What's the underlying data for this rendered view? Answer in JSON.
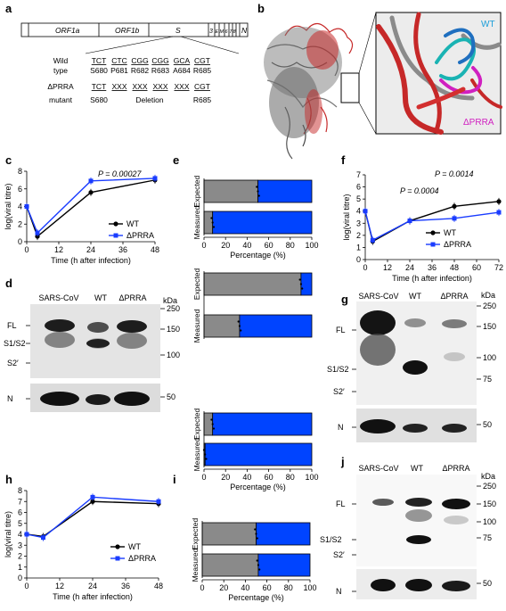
{
  "panel_labels": {
    "a": "a",
    "b": "b",
    "c": "c",
    "d": "d",
    "e": "e",
    "f": "f",
    "g": "g",
    "h": "h",
    "i": "i",
    "j": "j"
  },
  "panel_a": {
    "genes": [
      "ORF1a",
      "ORF1b",
      "S",
      "3",
      "E",
      "M",
      "6",
      "7",
      "8",
      "N"
    ],
    "row_labels": {
      "wt_line1": "Wild",
      "wt_line2": "type",
      "mut_line1": "ΔPRRA",
      "mut_line2": "mutant"
    },
    "wt_codons": [
      "TCT",
      "CTC",
      "CGG",
      "CGG",
      "GCA",
      "CGT"
    ],
    "wt_aa": [
      "S680",
      "P681",
      "R682",
      "R683",
      "A684",
      "R685"
    ],
    "mut_codons": [
      "TCT",
      "XXX",
      "XXX",
      "XXX",
      "XXX",
      "CGT"
    ],
    "mut_aa": {
      "left": "S680",
      "middle": "Deletion",
      "right": "R685"
    }
  },
  "panel_b": {
    "wt_label": "WT",
    "mut_label": "ΔPRRA"
  },
  "legend": {
    "wt": "WT",
    "mut": "ΔPRRA"
  },
  "colors": {
    "wt": "#000000",
    "mut": "#1a3cff",
    "blue_fill": "#0044ff",
    "gray_fill": "#8a8a8a",
    "inset_cyan": "#1ab3b3",
    "inset_magenta": "#d020c0"
  },
  "chart_data": [
    {
      "id": "c",
      "type": "line",
      "xlabel": "Time (h after infection)",
      "ylabel": "log(viral titre)",
      "xlim": [
        0,
        48
      ],
      "ylim": [
        0,
        8
      ],
      "xticks": [
        0,
        12,
        24,
        36,
        48
      ],
      "yticks": [
        0,
        2,
        4,
        6,
        8
      ],
      "annotation": "P = 0.00027",
      "series": [
        {
          "name": "WT",
          "x": [
            0,
            4,
            24,
            48
          ],
          "y": [
            4.0,
            0.6,
            5.6,
            7.0
          ]
        },
        {
          "name": "ΔPRRA",
          "x": [
            0,
            4,
            24,
            48
          ],
          "y": [
            4.0,
            1.0,
            6.9,
            7.2
          ]
        }
      ]
    },
    {
      "id": "f",
      "type": "line",
      "xlabel": "Time (h after infection)",
      "ylabel": "log(viral titre)",
      "xlim": [
        0,
        72
      ],
      "ylim": [
        0,
        7
      ],
      "xticks": [
        0,
        12,
        24,
        36,
        48,
        60,
        72
      ],
      "yticks": [
        0,
        1,
        2,
        3,
        4,
        5,
        6,
        7
      ],
      "annotations": [
        "P = 0.0014",
        "P = 0.0004"
      ],
      "series": [
        {
          "name": "WT",
          "x": [
            0,
            4,
            24,
            48,
            72
          ],
          "y": [
            4.0,
            1.5,
            3.2,
            4.4,
            4.8
          ]
        },
        {
          "name": "ΔPRRA",
          "x": [
            0,
            4,
            24,
            48,
            72
          ],
          "y": [
            4.0,
            1.6,
            3.2,
            3.4,
            3.9
          ]
        }
      ]
    },
    {
      "id": "h",
      "type": "line",
      "xlabel": "Time (h after infection)",
      "ylabel": "log(viral titre)",
      "xlim": [
        0,
        48
      ],
      "ylim": [
        0,
        8
      ],
      "xticks": [
        0,
        12,
        24,
        36,
        48
      ],
      "yticks": [
        0,
        1,
        2,
        3,
        4,
        5,
        6,
        7,
        8
      ],
      "series": [
        {
          "name": "WT",
          "x": [
            0,
            6,
            24,
            48
          ],
          "y": [
            4.0,
            3.8,
            7.0,
            6.8
          ]
        },
        {
          "name": "ΔPRRA",
          "x": [
            0,
            6,
            24,
            48
          ],
          "y": [
            4.0,
            3.7,
            7.4,
            7.0
          ]
        }
      ]
    },
    {
      "id": "e",
      "type": "bar",
      "xlabel": "Percentage (%)",
      "xticks": [
        0,
        20,
        40,
        60,
        80,
        100
      ],
      "categories": [
        "Expected",
        "Measured"
      ],
      "groups": [
        {
          "Expected": 50,
          "Measured": 8
        },
        {
          "Expected": 90,
          "Measured": 33
        },
        {
          "Expected": 8,
          "Measured": 1
        }
      ]
    },
    {
      "id": "i",
      "type": "bar",
      "xlabel": "Percentage (%)",
      "xticks": [
        0,
        20,
        40,
        60,
        80,
        100
      ],
      "categories": [
        "Expected",
        "Measured"
      ],
      "groups": [
        {
          "Expected": 50,
          "Measured": 52
        }
      ]
    }
  ],
  "panel_d": {
    "lanes": [
      "SARS-CoV",
      "WT",
      "ΔPRRA"
    ],
    "kda": "kDa",
    "markers": [
      "250",
      "150",
      "100",
      "50"
    ],
    "bands": [
      "FL",
      "S1/S2",
      "S2′",
      "N"
    ]
  },
  "panel_g": {
    "lanes": [
      "SARS-CoV",
      "WT",
      "ΔPRRA"
    ],
    "kda": "kDa",
    "markers": [
      "250",
      "150",
      "100",
      "75",
      "50"
    ],
    "bands": [
      "FL",
      "S1/S2",
      "S2′",
      "N"
    ]
  },
  "panel_j": {
    "lanes": [
      "SARS-CoV",
      "WT",
      "ΔPRRA"
    ],
    "kda": "kDa",
    "markers": [
      "250",
      "150",
      "100",
      "75",
      "50"
    ],
    "bands": [
      "FL",
      "S1/S2",
      "S2′",
      "N"
    ]
  }
}
